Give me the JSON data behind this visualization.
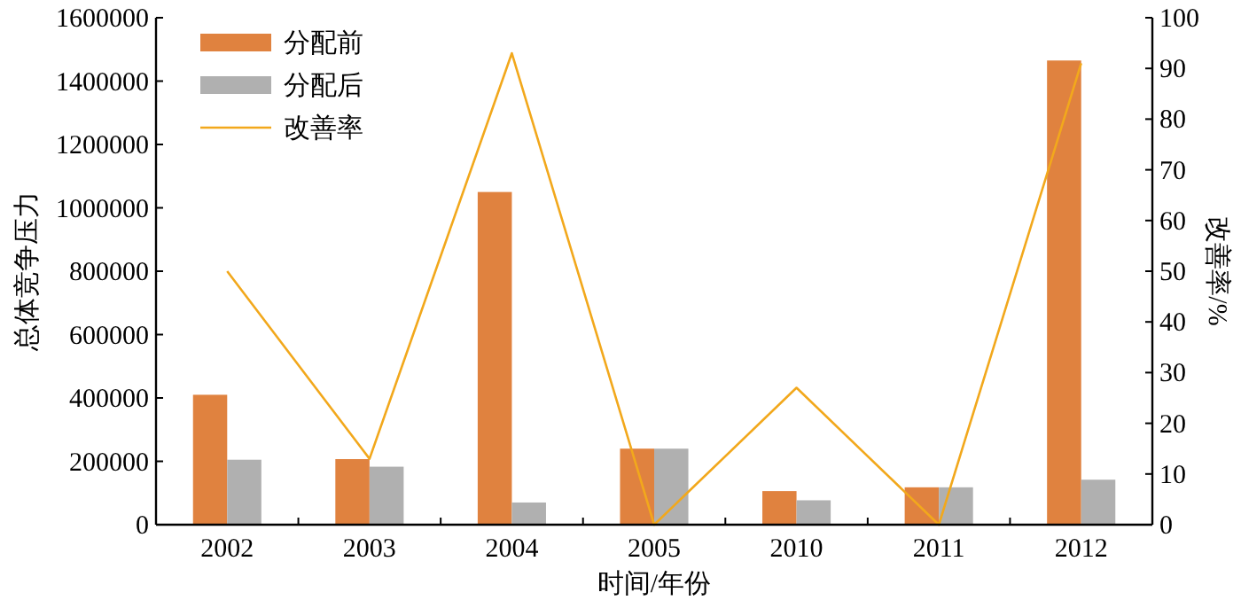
{
  "chart_data": {
    "type": "bar",
    "categories": [
      "2002",
      "2003",
      "2004",
      "2005",
      "2010",
      "2011",
      "2012"
    ],
    "series": [
      {
        "name": "分配前",
        "color": "#e0823f",
        "values": [
          410000,
          207000,
          1050000,
          240000,
          106000,
          118000,
          1465000
        ]
      },
      {
        "name": "分配后",
        "color": "#b0b0b0",
        "values": [
          205000,
          183000,
          70000,
          240000,
          77000,
          118000,
          142000
        ]
      },
      {
        "name": "改善率",
        "type": "line",
        "axis": "y2",
        "color": "#f2a81c",
        "values": [
          50,
          13,
          93,
          0,
          27,
          0,
          91
        ]
      }
    ],
    "xlabel": "时间/年份",
    "ylabel": "总体竞争压力",
    "y2label": "改善率/%",
    "ylim": [
      0,
      1600000
    ],
    "yticks": [
      0,
      200000,
      400000,
      600000,
      800000,
      1000000,
      1200000,
      1400000,
      1600000
    ],
    "y2lim": [
      0,
      100
    ],
    "y2ticks": [
      0,
      10,
      20,
      30,
      40,
      50,
      60,
      70,
      80,
      90,
      100
    ],
    "legend": "top left",
    "grid": false
  }
}
